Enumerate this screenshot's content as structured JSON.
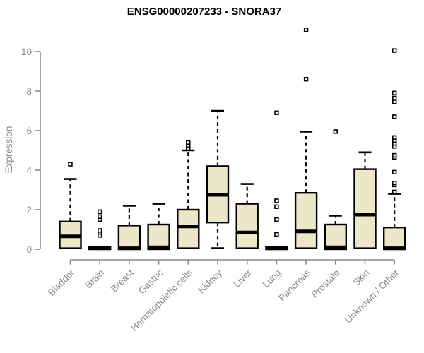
{
  "chart_data": {
    "type": "boxplot",
    "title": "ENSG00000207233 - SNORA37",
    "ylabel": "Expression",
    "xlabel": "",
    "ylim": [
      0,
      10
    ],
    "yticks": [
      0,
      2,
      4,
      6,
      8,
      10
    ],
    "grid": false,
    "legend": "none",
    "colors": {
      "box_fill": "#ece7c8",
      "box_stroke": "#000000",
      "median": "#000000",
      "whisker": "#000000",
      "outlier_stroke": "#000000",
      "outlier_fill": "#ffffff",
      "axis": "#8a8a8a",
      "axis_text": "#8a8a8a",
      "title": "#000000"
    },
    "categories": [
      "Bladder",
      "Brain",
      "Breast",
      "Gastric",
      "Hematopoietic cells",
      "Kidney",
      "Liver",
      "Lung",
      "Pancreas",
      "Prostate",
      "Skin",
      "Unknown / Other"
    ],
    "series": [
      {
        "category": "Bladder",
        "min": 0,
        "q1": 0.05,
        "median": 0.65,
        "q3": 1.4,
        "max": 3.55,
        "outliers": [
          4.3
        ]
      },
      {
        "category": "Brain",
        "min": 0,
        "q1": 0,
        "median": 0.05,
        "q3": 0.1,
        "max": 0.15,
        "outliers": [
          0.7,
          0.85,
          0.95,
          1.5,
          1.65,
          1.9
        ]
      },
      {
        "category": "Breast",
        "min": 0,
        "q1": 0,
        "median": 0.05,
        "q3": 1.2,
        "max": 2.2,
        "outliers": []
      },
      {
        "category": "Gastric",
        "min": 0,
        "q1": 0,
        "median": 0.1,
        "q3": 1.25,
        "max": 2.3,
        "outliers": []
      },
      {
        "category": "Hematopoietic cells",
        "min": 0,
        "q1": 0.05,
        "median": 1.15,
        "q3": 2.0,
        "max": 5.0,
        "outliers": [
          5.1,
          5.25,
          5.4
        ]
      },
      {
        "category": "Kidney",
        "min": 0.05,
        "q1": 1.35,
        "median": 2.75,
        "q3": 4.2,
        "max": 7.0,
        "outliers": []
      },
      {
        "category": "Liver",
        "min": 0,
        "q1": 0.05,
        "median": 0.85,
        "q3": 2.3,
        "max": 3.3,
        "outliers": []
      },
      {
        "category": "Lung",
        "min": 0,
        "q1": 0,
        "median": 0.05,
        "q3": 0.1,
        "max": 0.15,
        "outliers": [
          0.75,
          1.5,
          2.15,
          2.45,
          6.9
        ]
      },
      {
        "category": "Pancreas",
        "min": 0,
        "q1": 0.05,
        "median": 0.9,
        "q3": 2.85,
        "max": 5.95,
        "outliers": [
          8.6,
          11.1
        ]
      },
      {
        "category": "Prostate",
        "min": 0,
        "q1": 0,
        "median": 0.1,
        "q3": 1.25,
        "max": 1.7,
        "outliers": [
          5.95
        ]
      },
      {
        "category": "Skin",
        "min": 0,
        "q1": 0.05,
        "median": 1.75,
        "q3": 4.05,
        "max": 4.9,
        "outliers": []
      },
      {
        "category": "Unknown / Other",
        "min": 0,
        "q1": 0,
        "median": 0.05,
        "q3": 1.1,
        "max": 2.8,
        "outliers": [
          2.9,
          3.25,
          3.35,
          3.9,
          4.65,
          4.75,
          5.2,
          5.35,
          5.5,
          5.65,
          6.7,
          7.45,
          7.65,
          7.9,
          10.05
        ]
      }
    ]
  }
}
